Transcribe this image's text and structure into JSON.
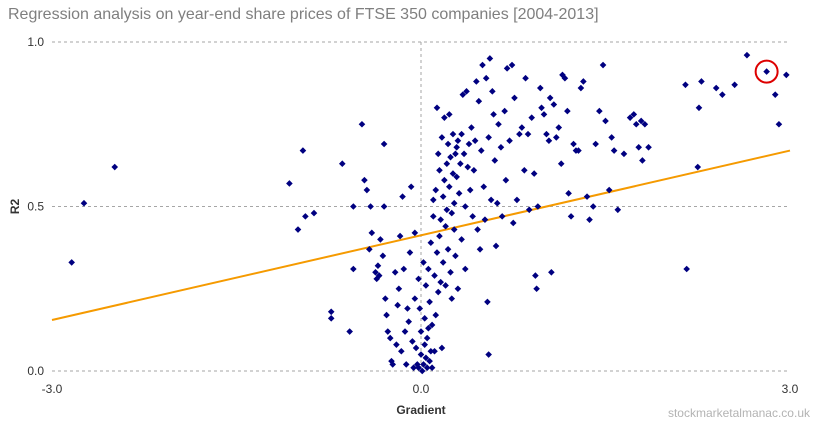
{
  "title": "Regression analysis on year-end share prices of FTSE 350 companies [2004-2013]",
  "watermark": "stockmarketalmanac.co.uk",
  "colors": {
    "points": "#000080",
    "trendline": "#f59a00",
    "highlight": "#dd0000",
    "grid": "#a6a6a6",
    "title": "#7f7f7f"
  },
  "chart_data": {
    "type": "scatter",
    "title": "Regression analysis on year-end share prices of FTSE 350 companies [2004-2013]",
    "xlabel": "Gradient",
    "ylabel": "R2",
    "xlim": [
      -3.0,
      3.0
    ],
    "ylim": [
      0.0,
      1.0
    ],
    "xticks": [
      "-3.0",
      "0.0",
      "3.0"
    ],
    "yticks": [
      "0.0",
      "0.5",
      "1.0"
    ],
    "grid": "dashed gridlines at x=0 and y=0.5, 1.0",
    "legend": "none",
    "trendline": {
      "x": [
        -3.0,
        3.0
      ],
      "y": [
        0.155,
        0.67
      ]
    },
    "highlight": {
      "x": 2.81,
      "y": 0.91,
      "marker": "red circle"
    },
    "points": [
      [
        -2.84,
        0.33
      ],
      [
        -2.74,
        0.51
      ],
      [
        -2.49,
        0.62
      ],
      [
        -1.07,
        0.57
      ],
      [
        -1.0,
        0.43
      ],
      [
        -0.96,
        0.67
      ],
      [
        -0.94,
        0.47
      ],
      [
        -0.87,
        0.48
      ],
      [
        -0.73,
        0.18
      ],
      [
        -0.73,
        0.16
      ],
      [
        -0.64,
        0.63
      ],
      [
        -0.58,
        0.12
      ],
      [
        -0.55,
        0.5
      ],
      [
        -0.55,
        0.31
      ],
      [
        -0.48,
        0.75
      ],
      [
        -0.46,
        0.58
      ],
      [
        -0.44,
        0.55
      ],
      [
        -0.42,
        0.37
      ],
      [
        -0.41,
        0.5
      ],
      [
        -0.4,
        0.42
      ],
      [
        -0.37,
        0.3
      ],
      [
        -0.36,
        0.28
      ],
      [
        -0.35,
        0.32
      ],
      [
        -0.34,
        0.29
      ],
      [
        -0.33,
        0.4
      ],
      [
        -0.31,
        0.35
      ],
      [
        -0.3,
        0.5
      ],
      [
        -0.3,
        0.69
      ],
      [
        -0.29,
        0.22
      ],
      [
        -0.28,
        0.17
      ],
      [
        -0.27,
        0.12
      ],
      [
        -0.25,
        0.1
      ],
      [
        -0.24,
        0.03
      ],
      [
        -0.23,
        0.02
      ],
      [
        -0.21,
        0.3
      ],
      [
        -0.2,
        0.08
      ],
      [
        -0.19,
        0.2
      ],
      [
        -0.18,
        0.25
      ],
      [
        -0.17,
        0.41
      ],
      [
        -0.16,
        0.06
      ],
      [
        -0.15,
        0.53
      ],
      [
        -0.14,
        0.31
      ],
      [
        -0.13,
        0.12
      ],
      [
        -0.12,
        0.02
      ],
      [
        -0.11,
        0.19
      ],
      [
        -0.1,
        0.15
      ],
      [
        -0.09,
        0.36
      ],
      [
        -0.08,
        0.56
      ],
      [
        -0.07,
        0.09
      ],
      [
        -0.06,
        0.01
      ],
      [
        -0.05,
        0.42
      ],
      [
        -0.05,
        0.22
      ],
      [
        -0.04,
        0.07
      ],
      [
        -0.03,
        0.02
      ],
      [
        -0.02,
        0.28
      ],
      [
        -0.02,
        0.01
      ],
      [
        -0.01,
        0.19
      ],
      [
        0.0,
        0.05
      ],
      [
        0.0,
        0.12
      ],
      [
        0.01,
        0.0
      ],
      [
        0.02,
        0.33
      ],
      [
        0.02,
        0.02
      ],
      [
        0.03,
        0.08
      ],
      [
        0.03,
        0.16
      ],
      [
        0.04,
        0.04
      ],
      [
        0.04,
        0.26
      ],
      [
        0.05,
        0.1
      ],
      [
        0.05,
        0.01
      ],
      [
        0.06,
        0.13
      ],
      [
        0.06,
        0.31
      ],
      [
        0.07,
        0.03
      ],
      [
        0.07,
        0.21
      ],
      [
        0.08,
        0.06
      ],
      [
        0.08,
        0.39
      ],
      [
        0.09,
        0.14
      ],
      [
        0.09,
        0.01
      ],
      [
        0.1,
        0.47
      ],
      [
        0.1,
        0.52
      ],
      [
        0.11,
        0.06
      ],
      [
        0.11,
        0.29
      ],
      [
        0.12,
        0.55
      ],
      [
        0.12,
        0.17
      ],
      [
        0.13,
        0.8
      ],
      [
        0.13,
        0.36
      ],
      [
        0.14,
        0.24
      ],
      [
        0.14,
        0.66
      ],
      [
        0.15,
        0.41
      ],
      [
        0.15,
        0.61
      ],
      [
        0.16,
        0.27
      ],
      [
        0.16,
        0.46
      ],
      [
        0.17,
        0.07
      ],
      [
        0.17,
        0.71
      ],
      [
        0.18,
        0.53
      ],
      [
        0.18,
        0.33
      ],
      [
        0.19,
        0.58
      ],
      [
        0.19,
        0.77
      ],
      [
        0.2,
        0.44
      ],
      [
        0.2,
        0.26
      ],
      [
        0.21,
        0.63
      ],
      [
        0.21,
        0.49
      ],
      [
        0.22,
        0.69
      ],
      [
        0.22,
        0.37
      ],
      [
        0.23,
        0.56
      ],
      [
        0.23,
        0.78
      ],
      [
        0.24,
        0.3
      ],
      [
        0.24,
        0.65
      ],
      [
        0.25,
        0.48
      ],
      [
        0.25,
        0.22
      ],
      [
        0.26,
        0.6
      ],
      [
        0.26,
        0.72
      ],
      [
        0.27,
        0.43
      ],
      [
        0.27,
        0.51
      ],
      [
        0.28,
        0.66
      ],
      [
        0.28,
        0.35
      ],
      [
        0.29,
        0.59
      ],
      [
        0.29,
        0.68
      ],
      [
        0.3,
        0.25
      ],
      [
        0.3,
        0.7
      ],
      [
        0.31,
        0.54
      ],
      [
        0.32,
        0.63
      ],
      [
        0.33,
        0.4
      ],
      [
        0.33,
        0.72
      ],
      [
        0.34,
        0.84
      ],
      [
        0.35,
        0.66
      ],
      [
        0.36,
        0.31
      ],
      [
        0.36,
        0.5
      ],
      [
        0.37,
        0.85
      ],
      [
        0.38,
        0.62
      ],
      [
        0.39,
        0.69
      ],
      [
        0.4,
        0.55
      ],
      [
        0.41,
        0.74
      ],
      [
        0.42,
        0.47
      ],
      [
        0.43,
        0.61
      ],
      [
        0.44,
        0.7
      ],
      [
        0.45,
        0.88
      ],
      [
        0.46,
        0.43
      ],
      [
        0.47,
        0.82
      ],
      [
        0.48,
        0.37
      ],
      [
        0.49,
        0.67
      ],
      [
        0.5,
        0.93
      ],
      [
        0.51,
        0.56
      ],
      [
        0.52,
        0.46
      ],
      [
        0.53,
        0.89
      ],
      [
        0.54,
        0.21
      ],
      [
        0.55,
        0.05
      ],
      [
        0.55,
        0.71
      ],
      [
        0.56,
        0.95
      ],
      [
        0.57,
        0.52
      ],
      [
        0.58,
        0.85
      ],
      [
        0.59,
        0.78
      ],
      [
        0.6,
        0.64
      ],
      [
        0.61,
        0.38
      ],
      [
        0.62,
        0.51
      ],
      [
        0.63,
        0.75
      ],
      [
        0.65,
        0.68
      ],
      [
        0.66,
        0.47
      ],
      [
        0.68,
        0.79
      ],
      [
        0.69,
        0.58
      ],
      [
        0.7,
        0.92
      ],
      [
        0.72,
        0.7
      ],
      [
        0.74,
        0.93
      ],
      [
        0.75,
        0.45
      ],
      [
        0.76,
        0.83
      ],
      [
        0.78,
        0.52
      ],
      [
        0.8,
        0.72
      ],
      [
        0.82,
        0.74
      ],
      [
        0.84,
        0.61
      ],
      [
        0.85,
        0.89
      ],
      [
        0.87,
        0.72
      ],
      [
        0.88,
        0.49
      ],
      [
        0.9,
        0.77
      ],
      [
        0.92,
        0.6
      ],
      [
        0.93,
        0.29
      ],
      [
        0.94,
        0.25
      ],
      [
        0.95,
        0.5
      ],
      [
        0.97,
        0.86
      ],
      [
        0.98,
        0.8
      ],
      [
        1.0,
        0.78
      ],
      [
        1.02,
        0.72
      ],
      [
        1.04,
        0.7
      ],
      [
        1.05,
        0.83
      ],
      [
        1.06,
        0.3
      ],
      [
        1.08,
        0.81
      ],
      [
        1.1,
        0.71
      ],
      [
        1.12,
        0.74
      ],
      [
        1.14,
        0.63
      ],
      [
        1.15,
        0.9
      ],
      [
        1.17,
        0.89
      ],
      [
        1.19,
        0.79
      ],
      [
        1.2,
        0.54
      ],
      [
        1.22,
        0.47
      ],
      [
        1.24,
        0.69
      ],
      [
        1.26,
        0.67
      ],
      [
        1.28,
        0.67
      ],
      [
        1.3,
        0.86
      ],
      [
        1.32,
        0.88
      ],
      [
        1.35,
        0.53
      ],
      [
        1.37,
        0.46
      ],
      [
        1.4,
        0.5
      ],
      [
        1.42,
        0.69
      ],
      [
        1.45,
        0.79
      ],
      [
        1.48,
        0.93
      ],
      [
        1.5,
        0.76
      ],
      [
        1.53,
        0.55
      ],
      [
        1.55,
        0.71
      ],
      [
        1.57,
        0.67
      ],
      [
        1.6,
        0.49
      ],
      [
        1.65,
        0.66
      ],
      [
        1.7,
        0.77
      ],
      [
        1.73,
        0.78
      ],
      [
        1.75,
        0.75
      ],
      [
        1.77,
        0.68
      ],
      [
        1.79,
        0.76
      ],
      [
        1.8,
        0.64
      ],
      [
        1.82,
        0.75
      ],
      [
        1.85,
        0.68
      ],
      [
        2.15,
        0.87
      ],
      [
        2.16,
        0.31
      ],
      [
        2.25,
        0.62
      ],
      [
        2.26,
        0.8
      ],
      [
        2.28,
        0.88
      ],
      [
        2.4,
        0.86
      ],
      [
        2.45,
        0.84
      ],
      [
        2.55,
        0.87
      ],
      [
        2.65,
        0.96
      ],
      [
        2.81,
        0.91
      ],
      [
        2.88,
        0.84
      ],
      [
        2.91,
        0.75
      ],
      [
        2.97,
        0.9
      ]
    ]
  }
}
